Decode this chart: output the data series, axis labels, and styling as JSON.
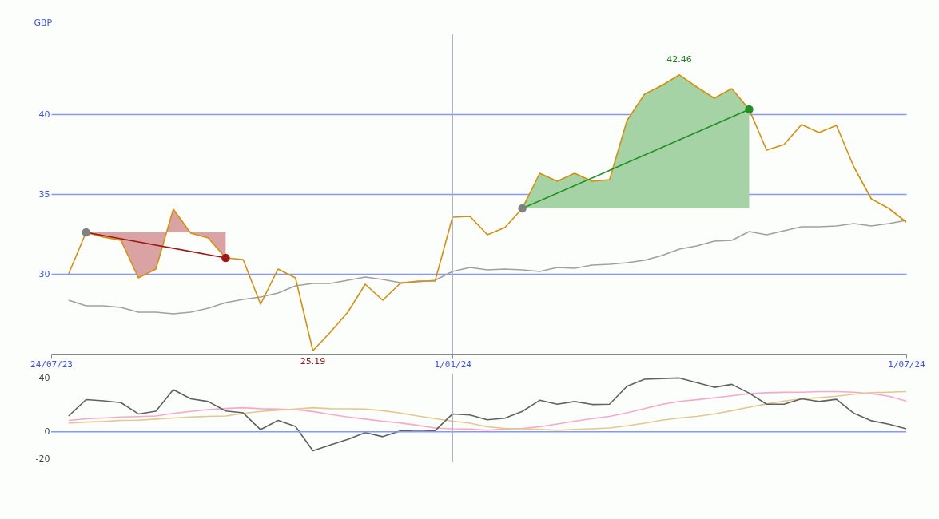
{
  "chart_data": [
    {
      "type": "line",
      "ylabel": "GBP",
      "x": [
        "2023-07-31",
        "2023-08-07",
        "2023-08-14",
        "2023-08-21",
        "2023-08-28",
        "2023-09-04",
        "2023-09-11",
        "2023-09-18",
        "2023-09-25",
        "2023-10-02",
        "2023-10-09",
        "2023-10-16",
        "2023-10-23",
        "2023-10-30",
        "2023-11-06",
        "2023-11-13",
        "2023-11-20",
        "2023-11-27",
        "2023-12-04",
        "2023-12-11",
        "2023-12-18",
        "2023-12-25",
        "2024-01-01",
        "2024-01-08",
        "2024-01-15",
        "2024-01-22",
        "2024-01-29",
        "2024-02-05",
        "2024-02-12",
        "2024-02-19",
        "2024-02-26",
        "2024-03-04",
        "2024-03-11",
        "2024-03-18",
        "2024-03-25",
        "2024-04-01",
        "2024-04-08",
        "2024-04-15",
        "2024-04-22",
        "2024-04-29",
        "2024-05-06",
        "2024-05-13",
        "2024-05-20",
        "2024-05-27",
        "2024-06-03",
        "2024-06-10",
        "2024-06-17",
        "2024-06-24",
        "2024-07-01"
      ],
      "series": [
        {
          "color": "#a0a0a0",
          "values": [
            28.35,
            28.0,
            28.0,
            27.9,
            27.6,
            27.6,
            27.5,
            27.6,
            27.85,
            28.2,
            28.4,
            28.55,
            28.8,
            29.25,
            29.4,
            29.4,
            29.6,
            29.8,
            29.65,
            29.45,
            29.5,
            29.6,
            30.15,
            30.4,
            30.25,
            30.3,
            30.25,
            30.15,
            30.4,
            30.35,
            30.55,
            30.6,
            30.7,
            30.85,
            31.15,
            31.55,
            31.75,
            32.05,
            32.1,
            32.65,
            32.45,
            32.7,
            32.95,
            32.95,
            33.0,
            33.15,
            33.0,
            33.15,
            33.35
          ]
        },
        {
          "color": "#d4900c",
          "values": [
            30.0,
            32.6,
            32.3,
            32.1,
            29.75,
            30.3,
            34.05,
            32.55,
            32.25,
            31.0,
            30.9,
            28.1,
            30.3,
            29.75,
            25.19,
            26.35,
            27.6,
            29.35,
            28.35,
            29.4,
            29.55,
            29.55,
            33.55,
            33.6,
            32.45,
            32.9,
            34.1,
            36.3,
            35.8,
            36.3,
            35.8,
            35.9,
            39.6,
            41.25,
            41.8,
            42.46,
            41.7,
            41.0,
            41.6,
            40.3,
            37.75,
            38.1,
            39.35,
            38.85,
            39.3,
            36.7,
            34.7,
            34.1,
            33.25
          ]
        },
        {
          "color": "#a01818",
          "marker": "circle",
          "x": [
            "2023-08-07",
            "2023-10-02"
          ],
          "values": [
            32.6,
            31.0
          ],
          "colors": [
            "#808080",
            "#a01818"
          ]
        },
        {
          "color": "#209020",
          "marker": "circle",
          "x": [
            "2024-01-29",
            "2024-04-29"
          ],
          "values": [
            34.1,
            40.3
          ],
          "colors": [
            "#808080",
            "#209020"
          ]
        }
      ],
      "xlim": [
        "2023-07-24",
        "2024-07-01"
      ],
      "xticks": [
        {
          "value": "2023-07-24",
          "label": "24/07/23"
        },
        {
          "value": "2024-01-01",
          "label": "1/01/24"
        },
        {
          "value": "2024-07-01",
          "label": "1/07/24"
        }
      ],
      "ylim": [
        25,
        45
      ],
      "yticks": [
        30,
        35,
        40
      ],
      "grid": "y",
      "marker": "none",
      "ref_lines": [
        {
          "axis": "x",
          "value": "2024-01-01",
          "color": "#b0b0c8"
        }
      ],
      "annotations": [
        {
          "text": "42.46",
          "x": "2024-04-01",
          "y": 42.46
        },
        {
          "text": "25.19",
          "x": "2023-11-06",
          "y": 25.19
        }
      ]
    },
    {
      "type": "line",
      "x": [
        "2023-07-31",
        "2023-08-07",
        "2023-08-14",
        "2023-08-21",
        "2023-08-28",
        "2023-09-04",
        "2023-09-11",
        "2023-09-18",
        "2023-09-25",
        "2023-10-02",
        "2023-10-09",
        "2023-10-16",
        "2023-10-23",
        "2023-10-30",
        "2023-11-06",
        "2023-11-13",
        "2023-11-20",
        "2023-11-27",
        "2023-12-04",
        "2023-12-11",
        "2023-12-18",
        "2023-12-25",
        "2024-01-01",
        "2024-01-08",
        "2024-01-15",
        "2024-01-22",
        "2024-01-29",
        "2024-02-05",
        "2024-02-12",
        "2024-02-19",
        "2024-02-26",
        "2024-03-04",
        "2024-03-11",
        "2024-03-18",
        "2024-03-25",
        "2024-04-01",
        "2024-04-08",
        "2024-04-15",
        "2024-04-22",
        "2024-04-29",
        "2024-05-06",
        "2024-05-13",
        "2024-05-20",
        "2024-05-27",
        "2024-06-03",
        "2024-06-10",
        "2024-06-17",
        "2024-06-24",
        "2024-07-01"
      ],
      "series": [
        {
          "color": "#f8a8c8",
          "values": [
            8.4,
            9.6,
            10.2,
            10.9,
            11.2,
            11.7,
            13.6,
            15.1,
            16.4,
            17.2,
            17.8,
            17.1,
            16.8,
            16.4,
            15.0,
            12.9,
            10.9,
            9.4,
            7.8,
            6.6,
            4.8,
            2.8,
            2.2,
            2.0,
            1.2,
            2.0,
            2.5,
            3.7,
            5.8,
            7.8,
            9.8,
            11.4,
            14.0,
            17.1,
            20.2,
            22.5,
            23.7,
            25.1,
            26.6,
            28.2,
            28.9,
            29.2,
            29.3,
            29.7,
            29.7,
            29.3,
            28.2,
            26.3,
            22.8
          ]
        },
        {
          "color": "#e0c890",
          "values": [
            6.4,
            7.2,
            7.6,
            8.4,
            8.6,
            9.4,
            10.2,
            10.9,
            11.4,
            11.7,
            13.6,
            15.1,
            16.0,
            16.8,
            17.8,
            17.1,
            17.0,
            16.8,
            15.6,
            13.9,
            11.7,
            9.8,
            7.8,
            6.4,
            3.7,
            2.5,
            2.2,
            1.7,
            1.2,
            1.7,
            2.2,
            2.8,
            4.4,
            6.4,
            8.6,
            10.2,
            11.4,
            13.2,
            15.6,
            18.2,
            20.6,
            22.8,
            24.4,
            25.2,
            26.3,
            27.8,
            28.9,
            29.3,
            29.7
          ]
        },
        {
          "color": "#606060",
          "values": [
            11.7,
            23.8,
            22.9,
            21.6,
            13.2,
            15.2,
            31.2,
            24.4,
            22.4,
            15.4,
            14.0,
            1.6,
            8.4,
            4.0,
            -14.0,
            -9.8,
            -5.6,
            -0.6,
            -3.6,
            0.6,
            1.2,
            0.8,
            13.2,
            12.4,
            8.9,
            10.1,
            15.1,
            23.3,
            20.4,
            22.4,
            20.2,
            20.4,
            33.7,
            38.9,
            39.4,
            39.8,
            36.4,
            32.9,
            35.1,
            28.6,
            20.4,
            20.4,
            24.4,
            22.4,
            24.0,
            13.7,
            8.2,
            5.6,
            2.2
          ]
        }
      ],
      "xlim": [
        "2023-07-24",
        "2024-07-01"
      ],
      "ylim": [
        -22,
        43
      ],
      "yticks": [
        -20,
        0,
        40
      ],
      "tick_labels": "y",
      "ref_lines": [
        {
          "axis": "y",
          "value": 0,
          "color": "#8898f0"
        },
        {
          "axis": "x",
          "value": "2024-01-01",
          "color": "#b0b0c8"
        }
      ]
    }
  ]
}
